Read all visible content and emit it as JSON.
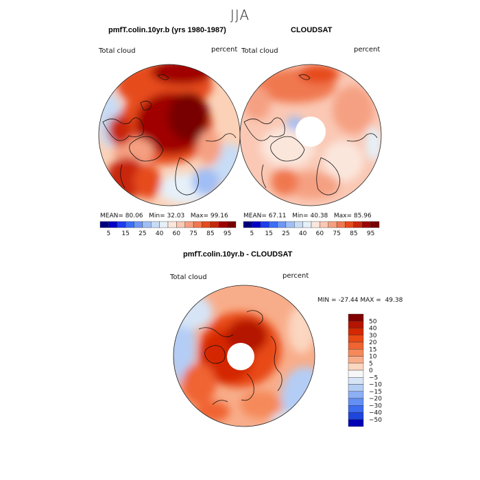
{
  "season": "JJA",
  "panels": [
    {
      "title": "pmfT.colin.10yr.b (yrs 1980-1987)",
      "variable": "Total cloud",
      "units": "percent",
      "mean": "80.06",
      "min": "32.03",
      "max": "99.16"
    },
    {
      "title": "CLOUDSAT",
      "variable": "Total cloud",
      "units": "percent",
      "mean": "67.11",
      "min": "40.38",
      "max": "85.96"
    }
  ],
  "stat_labels": {
    "mean": "MEAN=",
    "min": "Min=",
    "max": "Max="
  },
  "abs_colorbar": {
    "tick_labels": [
      "5",
      "15",
      "25",
      "40",
      "60",
      "75",
      "85",
      "95"
    ],
    "colors": [
      "#00007f",
      "#0000c8",
      "#1e3cf0",
      "#3c6ef5",
      "#6e96f5",
      "#a0bef5",
      "#c8dcf5",
      "#e6f0f8",
      "#fbe6dc",
      "#fac8b4",
      "#f5a082",
      "#f07850",
      "#e64b1e",
      "#c8280a",
      "#a00000",
      "#780000"
    ]
  },
  "diff_panel": {
    "title": "pmfT.colin.10yr.b - CLOUDSAT",
    "variable": "Total cloud",
    "units": "percent",
    "min_label": "MIN =",
    "min": "-27.44",
    "max_label": "MAX =",
    "max": "49.38"
  },
  "diff_colorbar": {
    "levels": [
      "50",
      "40",
      "30",
      "20",
      "15",
      "10",
      "5",
      "0",
      "−5",
      "−10",
      "−15",
      "−20",
      "−30",
      "−40",
      "−50"
    ],
    "colors": [
      "#800000",
      "#b41400",
      "#d42800",
      "#e84a14",
      "#f06432",
      "#f5895a",
      "#f8ad8a",
      "#fbd6c0",
      "#f7f7f7",
      "#d6e4f6",
      "#b4cdf5",
      "#8caff5",
      "#6490f5",
      "#3c6cf0",
      "#1e46dc",
      "#0000b4"
    ]
  }
}
